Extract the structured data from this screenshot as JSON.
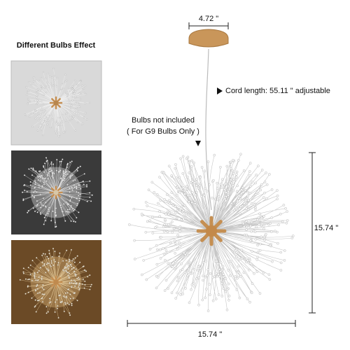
{
  "left_panel": {
    "title": "Different Bulbs Effect"
  },
  "dimensions": {
    "canopy_width": "4.72 \"",
    "cord_length": "Cord length: 55.11 \" adjustable",
    "height": "15.74 \"",
    "width": "15.74 \""
  },
  "notes": {
    "bulbs": "Bulbs not included",
    "bulb_type": "( For G9 Bulbs Only )"
  }
}
